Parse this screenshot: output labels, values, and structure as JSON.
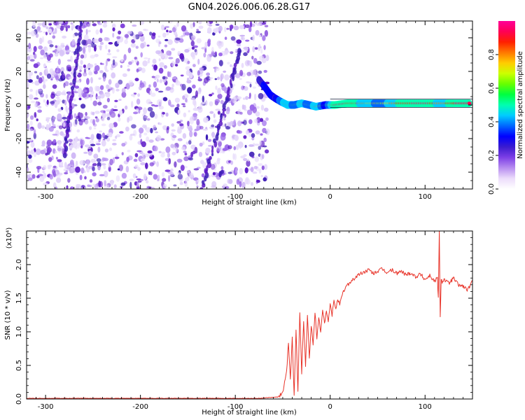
{
  "title": "GN04.2026.006.06.28.G17",
  "chart_data": [
    {
      "type": "heatmap",
      "title": "GN04.2026.006.06.28.G17",
      "xlabel": "Height of straight line (km)",
      "ylabel": "Frequency (Hz)",
      "xlim": [
        -320,
        150
      ],
      "ylim": [
        -50,
        50
      ],
      "x_ticks": [
        -300,
        -200,
        -100,
        0,
        100
      ],
      "x_tick_labels": [
        "-300",
        "-200",
        "-100",
        "0",
        "100"
      ],
      "y_ticks": [
        -40,
        -20,
        0,
        20,
        40
      ],
      "y_tick_labels": [
        "-40",
        "-20",
        "0",
        "20",
        "40"
      ],
      "noise_region_x": [
        -320,
        -68
      ],
      "background_color": "#ffffff",
      "noise_colors": [
        "#e6d9fb",
        "#d3bdf7",
        "#bb98f2",
        "#9a66ea",
        "#7a3ad9",
        "#5a17c6",
        "#3a1ab5"
      ],
      "faint_streaks": [
        {
          "x0": -280,
          "y0": -30,
          "x1": -262,
          "y1": 50
        },
        {
          "x0": -135,
          "y0": -50,
          "x1": -95,
          "y1": 32
        }
      ],
      "signal_ridge": [
        {
          "x": -75,
          "y": 15,
          "amp": 0.45
        },
        {
          "x": -68,
          "y": 10,
          "amp": 0.55
        },
        {
          "x": -63,
          "y": 6,
          "amp": 0.6
        },
        {
          "x": -58,
          "y": 4,
          "amp": 0.5
        },
        {
          "x": -52,
          "y": 2,
          "amp": 0.7
        },
        {
          "x": -45,
          "y": 0,
          "amp": 0.85
        },
        {
          "x": -38,
          "y": 0,
          "amp": 0.65
        },
        {
          "x": -30,
          "y": 1,
          "amp": 0.8
        },
        {
          "x": -22,
          "y": 0,
          "amp": 0.65
        },
        {
          "x": -15,
          "y": -1,
          "amp": 0.85
        },
        {
          "x": -5,
          "y": 0,
          "amp": 0.55
        },
        {
          "x": 5,
          "y": 0,
          "amp": 0.95
        },
        {
          "x": 18,
          "y": 1,
          "amp": 0.9
        },
        {
          "x": 30,
          "y": 1,
          "amp": 0.85
        },
        {
          "x": 42,
          "y": 1,
          "amp": 0.75
        },
        {
          "x": 55,
          "y": 1,
          "amp": 0.7
        },
        {
          "x": 70,
          "y": 1,
          "amp": 0.85
        },
        {
          "x": 85,
          "y": 1,
          "amp": 0.9
        },
        {
          "x": 100,
          "y": 1,
          "amp": 0.95
        },
        {
          "x": 115,
          "y": 1,
          "amp": 0.8
        },
        {
          "x": 130,
          "y": 1,
          "amp": 0.9
        },
        {
          "x": 148,
          "y": 1,
          "amp": 0.95
        }
      ],
      "colorbar": {
        "label": "Normalized spectral amplitude",
        "range": [
          0,
          1
        ],
        "ticks": [
          0.0,
          0.2,
          0.4,
          0.6,
          0.8
        ],
        "tick_labels": [
          "0.0",
          "0.2",
          "0.4",
          "0.6",
          "0.8"
        ],
        "colors": [
          "#ffffff",
          "#ecdcfb",
          "#b88ef0",
          "#7d3fe6",
          "#3b1ccf",
          "#0000ff",
          "#0066ff",
          "#00ccff",
          "#00ffb0",
          "#00ff40",
          "#66ff00",
          "#ccff00",
          "#ffcc00",
          "#ff7700",
          "#ff2000",
          "#ff0055",
          "#ff0099"
        ]
      }
    },
    {
      "type": "line",
      "xlabel": "Height of straight line (km)",
      "ylabel": "SNR (10 * v/v)",
      "y_scale_label": "(x10⁴)",
      "xlim": [
        -320,
        150
      ],
      "ylim": [
        0,
        2.5
      ],
      "x_ticks": [
        -300,
        -200,
        -100,
        0,
        100
      ],
      "x_tick_labels": [
        "-300",
        "-200",
        "-100",
        "0",
        "100"
      ],
      "y_ticks": [
        0.0,
        0.5,
        1.0,
        1.5,
        2.0
      ],
      "y_tick_labels": [
        "0.0",
        "0.5",
        "1.0",
        "1.5",
        "2.0"
      ],
      "series": [
        {
          "color": "#e8342a",
          "x": [
            -320,
            -250,
            -200,
            -150,
            -100,
            -75,
            -55,
            -50,
            -48,
            -46,
            -44,
            -42,
            -40,
            -38,
            -36,
            -34,
            -32,
            -30,
            -28,
            -26,
            -24,
            -22,
            -20,
            -18,
            -16,
            -14,
            -12,
            -10,
            -8,
            -6,
            -4,
            -2,
            0,
            2,
            4,
            6,
            8,
            10,
            14,
            18,
            22,
            26,
            30,
            35,
            40,
            45,
            50,
            55,
            60,
            65,
            70,
            75,
            80,
            85,
            90,
            95,
            100,
            105,
            110,
            113,
            114,
            115,
            116,
            117,
            118,
            120,
            125,
            130,
            135,
            140,
            145,
            150
          ],
          "y": [
            0.01,
            0.01,
            0.01,
            0.01,
            0.01,
            0.01,
            0.03,
            0.1,
            0.25,
            0.4,
            0.85,
            0.3,
            0.9,
            0.05,
            1.05,
            0.1,
            1.3,
            0.4,
            1.15,
            0.5,
            1.25,
            0.6,
            1.1,
            0.8,
            1.3,
            0.9,
            1.2,
            1.0,
            1.35,
            1.1,
            1.3,
            1.15,
            1.4,
            1.25,
            1.45,
            1.35,
            1.5,
            1.4,
            1.6,
            1.7,
            1.75,
            1.8,
            1.85,
            1.88,
            1.92,
            1.87,
            1.9,
            1.93,
            1.88,
            1.92,
            1.87,
            1.9,
            1.85,
            1.88,
            1.82,
            1.86,
            1.78,
            1.84,
            1.75,
            1.8,
            1.5,
            2.5,
            1.2,
            1.8,
            1.75,
            1.78,
            1.72,
            1.8,
            1.7,
            1.68,
            1.62,
            1.75
          ]
        }
      ]
    }
  ]
}
